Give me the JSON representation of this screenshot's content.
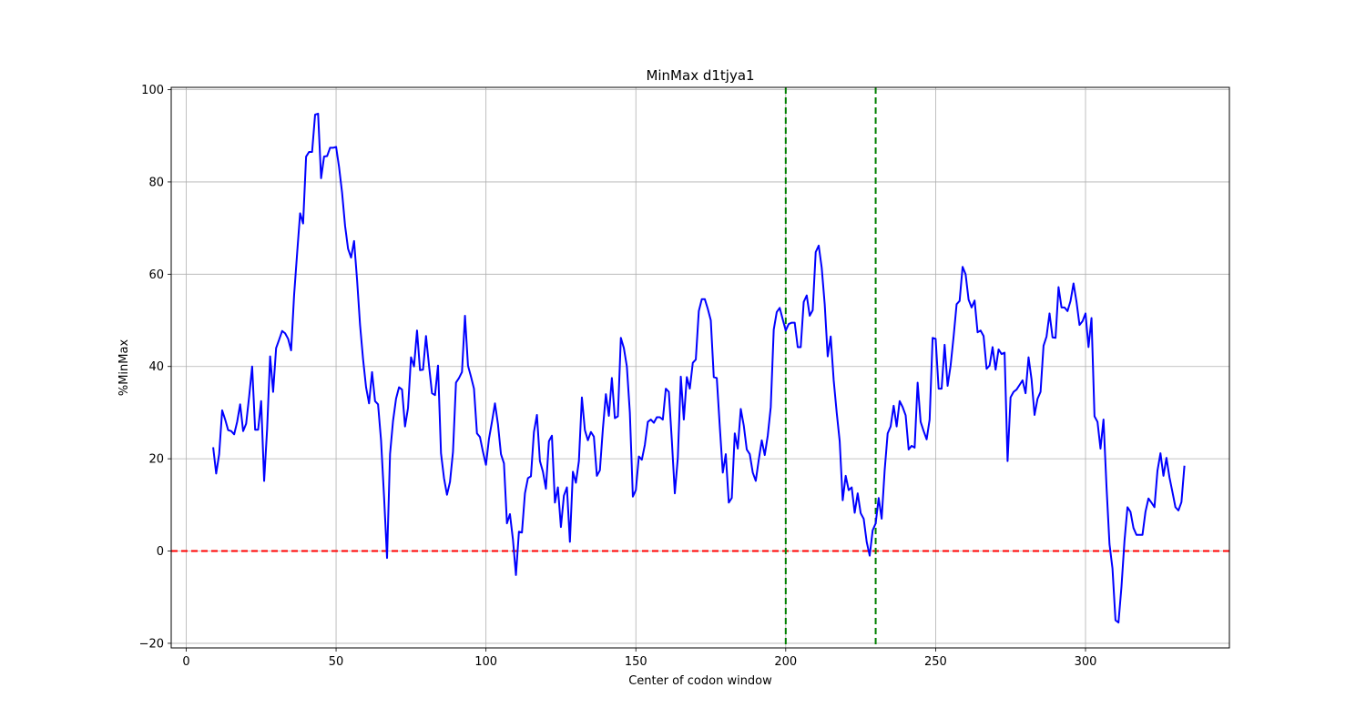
{
  "chart_data": {
    "type": "line",
    "title": "MinMax d1tjya1",
    "xlabel": "Center of codon window",
    "ylabel": "%MinMax",
    "xlim": [
      -5,
      348
    ],
    "ylim": [
      -21,
      100.5
    ],
    "xticks": [
      0,
      50,
      100,
      150,
      200,
      250,
      300
    ],
    "yticks": [
      -20,
      0,
      20,
      40,
      60,
      80,
      100
    ],
    "xtick_labels": [
      "0",
      "50",
      "100",
      "150",
      "200",
      "250",
      "300"
    ],
    "ytick_labels": [
      "−20",
      "0",
      "20",
      "40",
      "60",
      "80",
      "100"
    ],
    "grid": true,
    "colors": {
      "series": "#0000ff",
      "hline": "#ff0000",
      "vlines": "#008000",
      "grid": "#b0b0b0"
    },
    "hlines": [
      {
        "y": 0,
        "style": "dashed",
        "color": "red"
      }
    ],
    "vlines": [
      {
        "x": 200,
        "style": "dashed",
        "color": "green"
      },
      {
        "x": 230,
        "style": "dashed",
        "color": "green"
      }
    ],
    "series": [
      {
        "x": [
          9,
          10,
          11,
          12,
          13,
          14,
          15,
          16,
          17,
          18,
          19,
          20,
          21,
          22,
          23,
          24,
          25,
          26,
          27,
          28,
          29,
          30,
          31,
          32,
          33,
          34,
          35,
          36,
          37,
          38,
          39,
          40,
          41,
          42,
          43,
          44,
          45,
          46,
          47,
          48,
          49,
          50,
          51,
          52,
          53,
          54,
          55,
          56,
          57,
          58,
          59,
          60,
          61,
          62,
          63,
          64,
          65,
          66,
          67,
          68,
          69,
          70,
          71,
          72,
          73,
          74,
          75,
          76,
          77,
          78,
          79,
          80,
          81,
          82,
          83,
          84,
          85,
          86,
          87,
          88,
          89,
          90,
          91,
          92,
          93,
          94,
          95,
          96,
          97,
          98,
          99,
          100,
          101,
          102,
          103,
          104,
          105,
          106,
          107,
          108,
          109,
          110,
          111,
          112,
          113,
          114,
          115,
          116,
          117,
          118,
          119,
          120,
          121,
          122,
          123,
          124,
          125,
          126,
          127,
          128,
          129,
          130,
          131,
          132,
          133,
          134,
          135,
          136,
          137,
          138,
          139,
          140,
          141,
          142,
          143,
          144,
          145,
          146,
          147,
          148,
          149,
          150,
          151,
          152,
          153,
          154,
          155,
          156,
          157,
          158,
          159,
          160,
          161,
          162,
          163,
          164,
          165,
          166,
          167,
          168,
          169,
          170,
          171,
          172,
          173,
          174,
          175,
          176,
          177,
          178,
          179,
          180,
          181,
          182,
          183,
          184,
          185,
          186,
          187,
          188,
          189,
          190,
          191,
          192,
          193,
          194,
          195,
          196,
          197,
          198,
          199,
          200,
          201,
          202,
          203,
          204,
          205,
          206,
          207,
          208,
          209,
          210,
          211,
          212,
          213,
          214,
          215,
          216,
          217,
          218,
          219,
          220,
          221,
          222,
          223,
          224,
          225,
          226,
          227,
          228,
          229,
          230,
          231,
          232,
          233,
          234,
          235,
          236,
          237,
          238,
          239,
          240,
          241,
          242,
          243,
          244,
          245,
          246,
          247,
          248,
          249,
          250,
          251,
          252,
          253,
          254,
          255,
          256,
          257,
          258,
          259,
          260,
          261,
          262,
          263,
          264,
          265,
          266,
          267,
          268,
          269,
          270,
          271,
          272,
          273,
          274,
          275,
          276,
          277,
          278,
          279,
          280,
          281,
          282,
          283,
          284,
          285,
          286,
          287,
          288,
          289,
          290,
          291,
          292,
          293,
          294,
          295,
          296,
          297,
          298,
          299,
          300,
          301,
          302,
          303,
          304,
          305,
          306,
          307,
          308,
          309,
          310,
          311,
          312,
          313,
          314,
          315,
          316,
          317,
          318,
          319,
          320,
          321,
          322,
          323,
          324,
          325,
          326,
          327,
          328,
          329,
          330,
          331,
          332,
          333
        ],
        "y": [
          22.5,
          16.8,
          21,
          30.5,
          28.5,
          26.2,
          26,
          25.3,
          28,
          31.8,
          26,
          27.6,
          33.5,
          40,
          26.3,
          26.3,
          32.5,
          15.2,
          26.5,
          42.2,
          34.5,
          44,
          45.8,
          47.7,
          47.2,
          46,
          43.5,
          55.5,
          64.5,
          73.2,
          71,
          85.5,
          86.5,
          86.5,
          94.6,
          94.8,
          80.8,
          85.5,
          85.6,
          87.4,
          87.4,
          87.6,
          83.2,
          77.7,
          70.5,
          65.5,
          63.6,
          67.2,
          58.8,
          49,
          41.6,
          35.5,
          32,
          38.8,
          32.5,
          31.8,
          24,
          11.8,
          -1.5,
          21,
          28.2,
          33,
          35.5,
          35,
          27,
          31,
          42,
          40,
          47.8,
          39.2,
          39.3,
          46.6,
          40.2,
          34.2,
          33.8,
          40.2,
          21.2,
          15.8,
          12.2,
          15,
          21.5,
          36.5,
          37.5,
          38.8,
          51,
          40.2,
          37.8,
          35.2,
          25.5,
          24.7,
          21.5,
          18.7,
          24.3,
          28,
          32,
          27.5,
          21,
          19,
          6,
          8,
          2.5,
          -5.2,
          4.2,
          4,
          12.5,
          15.8,
          16.2,
          25.8,
          29.5,
          19.5,
          17.2,
          13.5,
          23.8,
          25,
          10.5,
          13.8,
          5.2,
          12,
          13.8,
          2,
          17.2,
          14.8,
          19.5,
          33.3,
          26.2,
          24,
          25.8,
          24.8,
          16.3,
          17.5,
          26.5,
          34,
          29.3,
          37.5,
          28.8,
          29.2,
          46.2,
          44,
          40,
          30,
          11.8,
          13.2,
          20.5,
          19.8,
          23,
          28,
          28.5,
          27.8,
          29,
          29,
          28.5,
          35.2,
          34.5,
          24,
          12.5,
          20.2,
          37.8,
          28.5,
          37.7,
          35.2,
          40.8,
          41.5,
          52,
          54.6,
          54.6,
          52.5,
          50,
          37.7,
          37.5,
          27,
          17,
          21,
          10.5,
          11.5,
          25.5,
          22.2,
          30.8,
          27.2,
          22,
          21,
          17,
          15.2,
          19.8,
          24,
          20.8,
          25,
          31.2,
          48,
          51.8,
          52.7,
          50.2,
          47.8,
          49.2,
          49.5,
          49.5,
          44.2,
          44.2,
          54,
          55.4,
          51,
          52.2,
          64.8,
          66.2,
          61.4,
          53.5,
          42.2,
          46.5,
          37,
          30,
          23.8,
          11,
          16.3,
          13.2,
          13.8,
          8.3,
          12.5,
          8.2,
          7,
          2,
          -1,
          4.5,
          6,
          11.5,
          7,
          17.5,
          25.5,
          27,
          31.5,
          27,
          32.5,
          31.2,
          29.4,
          22,
          22.8,
          22.4,
          36.5,
          28,
          26,
          24.2,
          28.5,
          46.2,
          46,
          35.2,
          35.2,
          44.7,
          35.8,
          40.2,
          46.5,
          53.5,
          54.2,
          61.6,
          60,
          54.5,
          52.8,
          54.3,
          47.4,
          47.8,
          46.6,
          39.5,
          40.2,
          44.2,
          39.3,
          43.7,
          42.7,
          43,
          19.5,
          33.3,
          34.5,
          35,
          36,
          37,
          34.2,
          42,
          37.2,
          29.5,
          33,
          34.5,
          44.5,
          46.5,
          51.5,
          46.3,
          46.2,
          57.2,
          52.8,
          52.8,
          52,
          54.2,
          58,
          54,
          49,
          49.8,
          51.5,
          44.2,
          50.5,
          29.2,
          28,
          22.2,
          28.5,
          14,
          1.5,
          -3.8,
          -15,
          -15.5,
          -7.7,
          2.2,
          9.5,
          8.5,
          5,
          3.5,
          3.5,
          3.5,
          8.5,
          11.4,
          10.5,
          9.5,
          17.4,
          21.2,
          16.3,
          20.2,
          16,
          12.8,
          9.5,
          8.8,
          10.6,
          18.5
        ],
        "color": "blue"
      }
    ]
  }
}
